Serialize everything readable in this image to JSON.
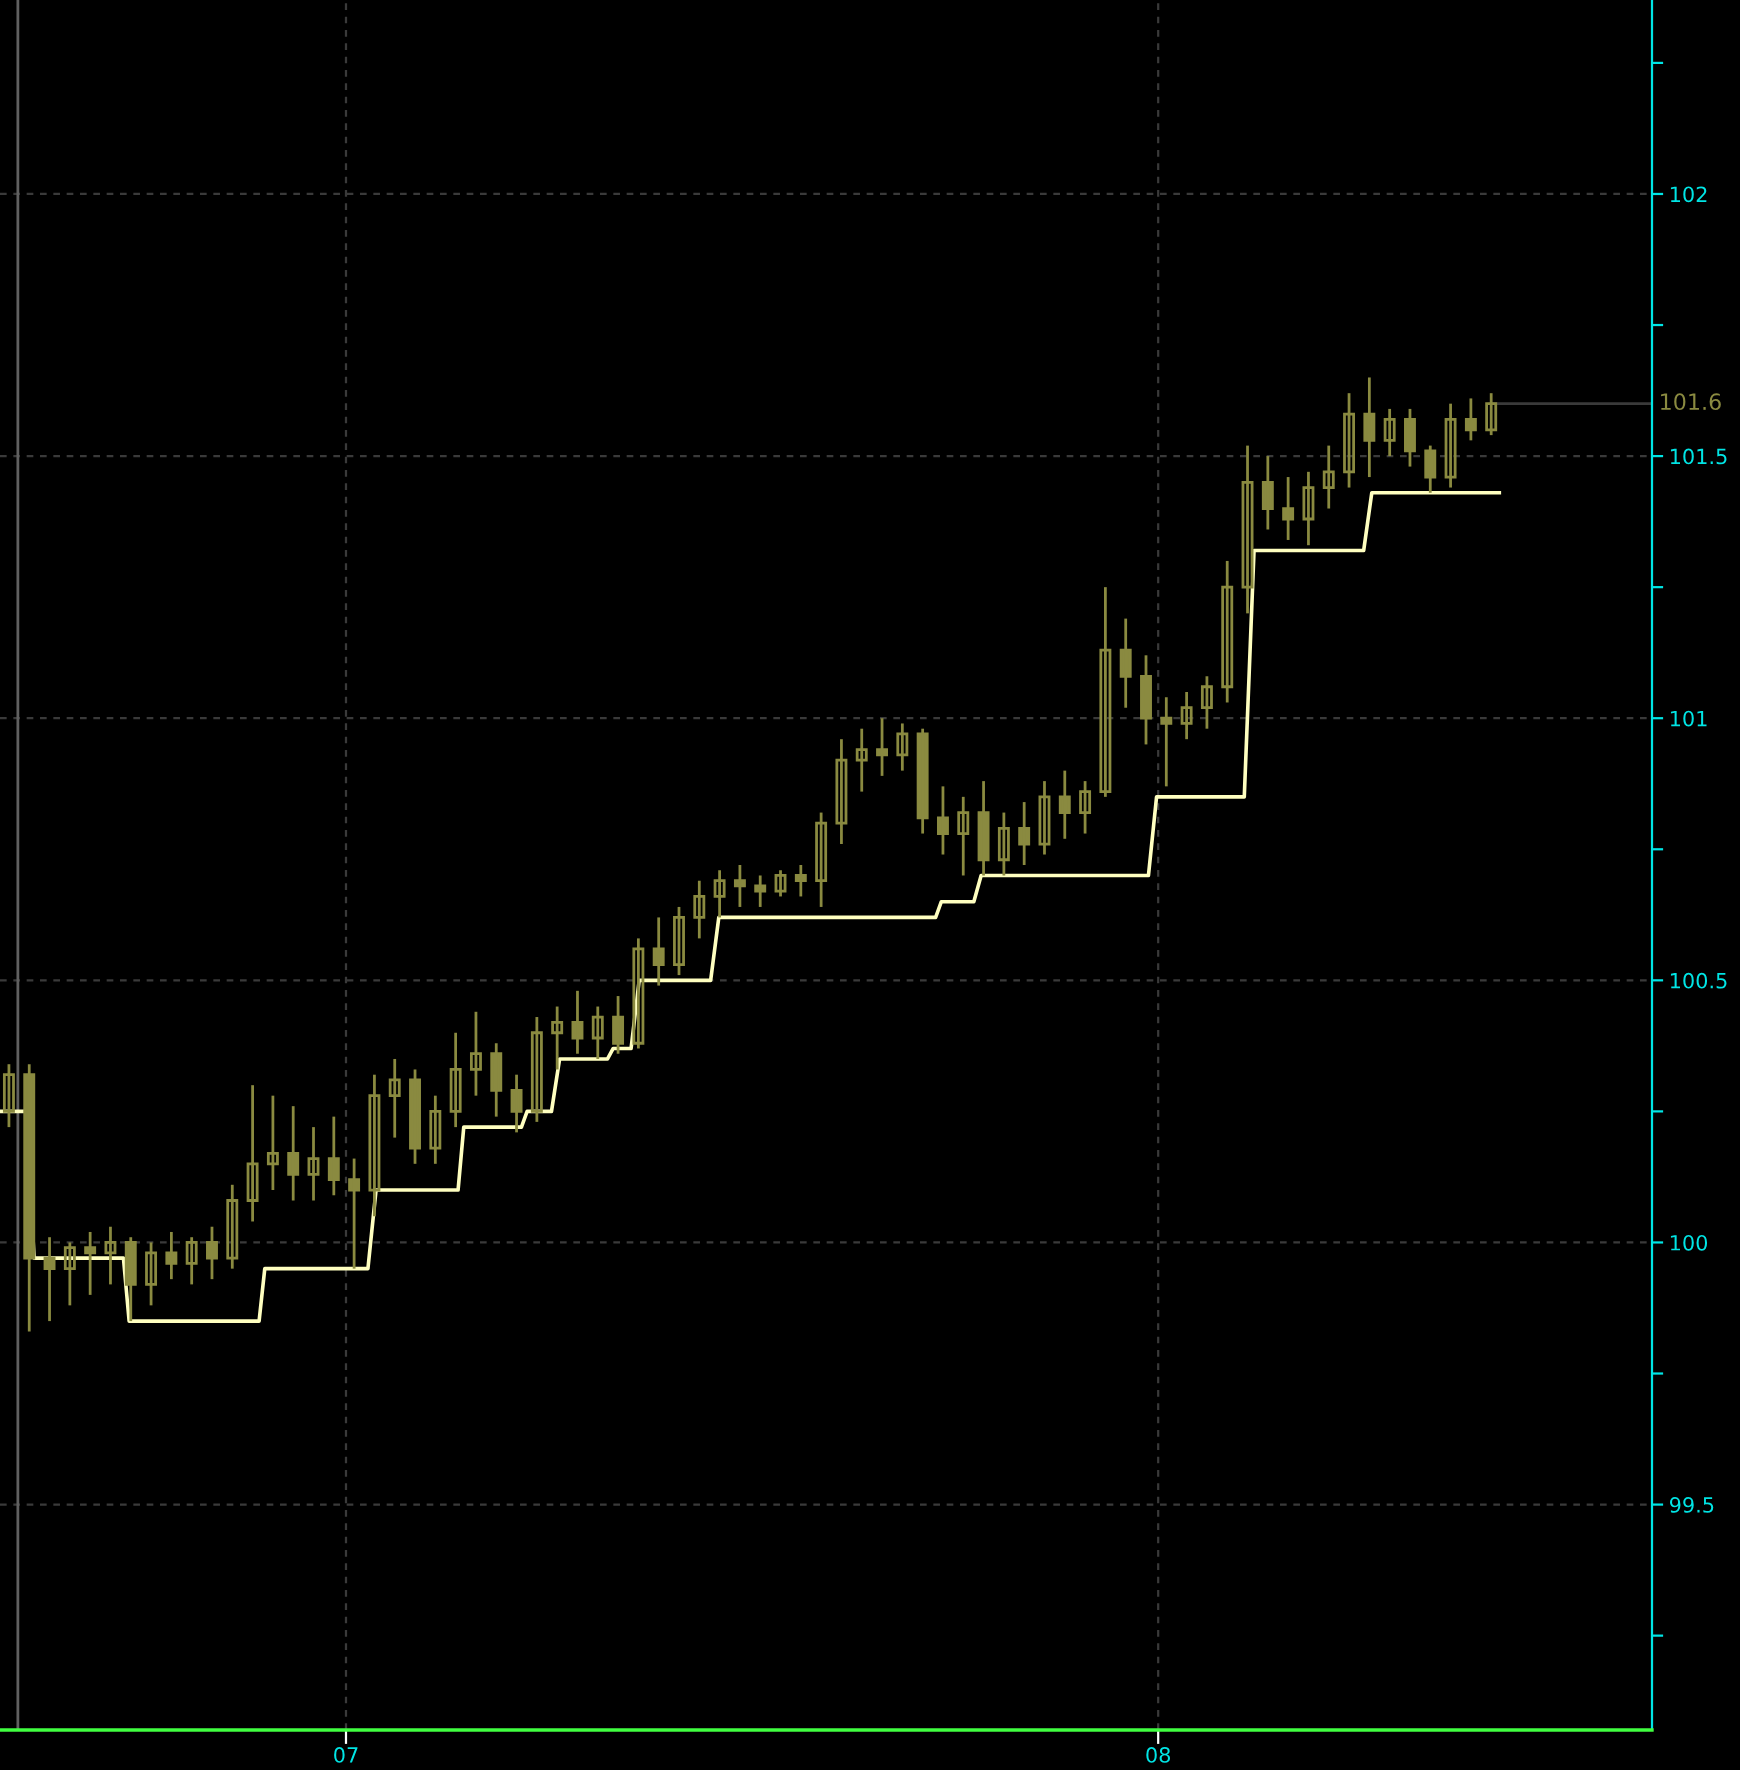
{
  "chart_data": {
    "type": "candlestick",
    "color": "#8a8a40",
    "x": [
      6.585,
      6.61,
      6.635,
      6.66,
      6.685,
      6.71,
      6.735,
      6.76,
      6.785,
      6.81,
      6.835,
      6.86,
      6.885,
      6.91,
      6.935,
      6.96,
      6.985,
      7.01,
      7.035,
      7.06,
      7.085,
      7.11,
      7.135,
      7.16,
      7.185,
      7.21,
      7.235,
      7.26,
      7.285,
      7.31,
      7.335,
      7.36,
      7.385,
      7.41,
      7.435,
      7.46,
      7.485,
      7.51,
      7.535,
      7.56,
      7.585,
      7.61,
      7.635,
      7.66,
      7.685,
      7.71,
      7.735,
      7.76,
      7.785,
      7.81,
      7.835,
      7.86,
      7.885,
      7.91,
      7.935,
      7.96,
      7.985,
      8.01,
      8.035,
      8.06,
      8.085,
      8.11,
      8.135,
      8.16,
      8.185,
      8.21,
      8.235,
      8.26,
      8.285,
      8.31,
      8.335,
      8.36,
      8.385,
      8.41
    ],
    "ohlc": [
      [
        100.25,
        100.34,
        100.22,
        100.32
      ],
      [
        100.32,
        100.34,
        99.83,
        99.97
      ],
      [
        99.97,
        100.01,
        99.85,
        99.95
      ],
      [
        99.95,
        100.0,
        99.88,
        99.99
      ],
      [
        99.99,
        100.02,
        99.9,
        99.98
      ],
      [
        99.98,
        100.03,
        99.92,
        100.0
      ],
      [
        100.0,
        100.01,
        99.85,
        99.92
      ],
      [
        99.92,
        100.0,
        99.88,
        99.98
      ],
      [
        99.98,
        100.02,
        99.93,
        99.96
      ],
      [
        99.96,
        100.01,
        99.92,
        100.0
      ],
      [
        100.0,
        100.03,
        99.93,
        99.97
      ],
      [
        99.97,
        100.11,
        99.95,
        100.08
      ],
      [
        100.08,
        100.3,
        100.04,
        100.15
      ],
      [
        100.15,
        100.28,
        100.1,
        100.17
      ],
      [
        100.17,
        100.26,
        100.08,
        100.13
      ],
      [
        100.13,
        100.22,
        100.08,
        100.16
      ],
      [
        100.16,
        100.24,
        100.09,
        100.12
      ],
      [
        100.12,
        100.16,
        99.95,
        100.1
      ],
      [
        100.1,
        100.32,
        100.05,
        100.28
      ],
      [
        100.28,
        100.35,
        100.2,
        100.31
      ],
      [
        100.31,
        100.33,
        100.15,
        100.18
      ],
      [
        100.18,
        100.28,
        100.15,
        100.25
      ],
      [
        100.25,
        100.4,
        100.22,
        100.33
      ],
      [
        100.33,
        100.44,
        100.28,
        100.36
      ],
      [
        100.36,
        100.38,
        100.24,
        100.29
      ],
      [
        100.29,
        100.32,
        100.21,
        100.25
      ],
      [
        100.25,
        100.43,
        100.23,
        100.4
      ],
      [
        100.4,
        100.45,
        100.33,
        100.42
      ],
      [
        100.42,
        100.48,
        100.36,
        100.39
      ],
      [
        100.39,
        100.45,
        100.35,
        100.43
      ],
      [
        100.43,
        100.47,
        100.36,
        100.38
      ],
      [
        100.38,
        100.58,
        100.37,
        100.56
      ],
      [
        100.56,
        100.62,
        100.49,
        100.53
      ],
      [
        100.53,
        100.64,
        100.51,
        100.62
      ],
      [
        100.62,
        100.69,
        100.58,
        100.66
      ],
      [
        100.66,
        100.71,
        100.62,
        100.69
      ],
      [
        100.69,
        100.72,
        100.64,
        100.68
      ],
      [
        100.68,
        100.7,
        100.64,
        100.67
      ],
      [
        100.67,
        100.71,
        100.66,
        100.7
      ],
      [
        100.7,
        100.72,
        100.66,
        100.69
      ],
      [
        100.69,
        100.82,
        100.64,
        100.8
      ],
      [
        100.8,
        100.96,
        100.76,
        100.92
      ],
      [
        100.92,
        100.98,
        100.86,
        100.94
      ],
      [
        100.94,
        101.0,
        100.89,
        100.93
      ],
      [
        100.93,
        100.99,
        100.9,
        100.97
      ],
      [
        100.97,
        100.98,
        100.78,
        100.81
      ],
      [
        100.81,
        100.87,
        100.74,
        100.78
      ],
      [
        100.78,
        100.85,
        100.7,
        100.82
      ],
      [
        100.82,
        100.88,
        100.7,
        100.73
      ],
      [
        100.73,
        100.82,
        100.7,
        100.79
      ],
      [
        100.79,
        100.84,
        100.72,
        100.76
      ],
      [
        100.76,
        100.88,
        100.74,
        100.85
      ],
      [
        100.85,
        100.9,
        100.77,
        100.82
      ],
      [
        100.82,
        100.88,
        100.78,
        100.86
      ],
      [
        100.86,
        101.25,
        100.85,
        101.13
      ],
      [
        101.13,
        101.19,
        101.02,
        101.08
      ],
      [
        101.08,
        101.12,
        100.95,
        101.0
      ],
      [
        101.0,
        101.04,
        100.87,
        100.99
      ],
      [
        100.99,
        101.05,
        100.96,
        101.02
      ],
      [
        101.02,
        101.08,
        100.98,
        101.06
      ],
      [
        101.06,
        101.3,
        101.03,
        101.25
      ],
      [
        101.25,
        101.52,
        101.2,
        101.45
      ],
      [
        101.45,
        101.5,
        101.36,
        101.4
      ],
      [
        101.4,
        101.46,
        101.34,
        101.38
      ],
      [
        101.38,
        101.47,
        101.33,
        101.44
      ],
      [
        101.44,
        101.52,
        101.4,
        101.47
      ],
      [
        101.47,
        101.62,
        101.44,
        101.58
      ],
      [
        101.58,
        101.65,
        101.46,
        101.53
      ],
      [
        101.53,
        101.59,
        101.5,
        101.57
      ],
      [
        101.57,
        101.59,
        101.48,
        101.51
      ],
      [
        101.51,
        101.52,
        101.43,
        101.46
      ],
      [
        101.46,
        101.6,
        101.44,
        101.57
      ],
      [
        101.57,
        101.61,
        101.53,
        101.55
      ],
      [
        101.55,
        101.62,
        101.54,
        101.6
      ]
    ],
    "series": [
      {
        "type": "line",
        "color": "#ffffc0",
        "x": [
          6.576,
          6.606,
          6.616,
          6.726,
          6.733,
          6.893,
          6.9,
          7.027,
          7.037,
          7.138,
          7.145,
          7.216,
          7.223,
          7.253,
          7.263,
          7.322,
          7.329,
          7.351,
          7.361,
          7.449,
          7.459,
          7.726,
          7.733,
          7.773,
          7.782,
          7.988,
          7.998,
          8.106,
          8.118,
          8.253,
          8.263,
          8.42
        ],
        "values": [
          100.25,
          100.25,
          99.97,
          99.97,
          99.85,
          99.85,
          99.95,
          99.95,
          100.1,
          100.1,
          100.22,
          100.22,
          100.25,
          100.25,
          100.35,
          100.35,
          100.37,
          100.37,
          100.5,
          100.5,
          100.62,
          100.62,
          100.65,
          100.65,
          100.7,
          100.7,
          100.85,
          100.85,
          101.32,
          101.32,
          101.43,
          101.43
        ]
      }
    ],
    "xlim": [
      6.574,
      8.608
    ],
    "xticks": [
      {
        "value": 7,
        "label": "07"
      },
      {
        "value": 8,
        "label": "08"
      }
    ],
    "ylim": [
      99.07,
      102.37
    ],
    "yticks": [
      {
        "value": 99.25,
        "label": null
      },
      99.5,
      {
        "value": 99.75,
        "label": null
      },
      100,
      {
        "value": 100.25,
        "label": null
      },
      100.5,
      {
        "value": 100.75,
        "label": null
      },
      101,
      {
        "value": 101.25,
        "label": null
      },
      101.5,
      {
        "value": 101.75,
        "label": null
      },
      102,
      {
        "value": 102.25,
        "label": null
      }
    ],
    "ref_lines": [
      {
        "axis": "y",
        "value": 101.6,
        "label": "101.6",
        "color": "#3a3a3a"
      },
      {
        "axis": "x",
        "value": 6.596,
        "color": "#606060"
      }
    ],
    "grid": true
  }
}
